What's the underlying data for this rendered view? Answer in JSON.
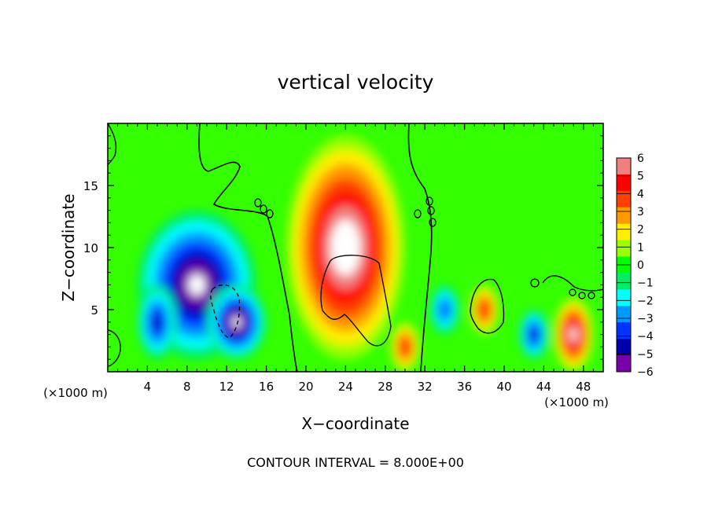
{
  "chart_data": {
    "type": "heatmap",
    "title": "vertical velocity",
    "xlabel": "X−coordinate",
    "ylabel": "Z−coordinate",
    "x_unit_left": "(×1000 m)",
    "x_unit_right": "(×1000 m)",
    "footer": "CONTOUR INTERVAL = 8.000E+00",
    "xlim": [
      0,
      50
    ],
    "ylim": [
      0,
      20
    ],
    "x_ticks": [
      4,
      8,
      12,
      16,
      20,
      24,
      28,
      32,
      36,
      40,
      44,
      48
    ],
    "y_ticks": [
      5,
      10,
      15
    ],
    "colorbar": {
      "labels": [
        "6",
        "5",
        "4",
        "3",
        "2",
        "1",
        "0",
        "−1",
        "−2",
        "−3",
        "−4",
        "−5",
        "−6"
      ],
      "values": [
        6,
        5,
        4,
        3,
        2,
        1,
        0,
        -1,
        -2,
        -3,
        -4,
        -5,
        -6
      ],
      "colors": [
        "#f08080",
        "#ff0000",
        "#ff4000",
        "#ff9900",
        "#ffee00",
        "#99ff00",
        "#00ff00",
        "#00ee66",
        "#00ffff",
        "#0099ff",
        "#0033ff",
        "#0000aa",
        "#7700aa"
      ]
    },
    "features": [
      {
        "kind": "updraft",
        "x": 24,
        "z": 10,
        "x_radius": 6,
        "z_radius": 9,
        "peak": 8,
        "note": "white core exceeds 6"
      },
      {
        "kind": "downdraft",
        "x": 9,
        "z": 7,
        "x_radius": 6,
        "z_radius": 6,
        "peak": -7
      },
      {
        "kind": "downdraft",
        "x": 13,
        "z": 4,
        "x_radius": 3,
        "z_radius": 3,
        "peak": -7
      },
      {
        "kind": "downdraft",
        "x": 5,
        "z": 4,
        "x_radius": 2,
        "z_radius": 3,
        "peak": -5
      },
      {
        "kind": "updraft",
        "x": 38,
        "z": 5,
        "x_radius": 1.5,
        "z_radius": 2,
        "peak": 5
      },
      {
        "kind": "downdraft",
        "x": 34,
        "z": 5,
        "x_radius": 1.5,
        "z_radius": 2,
        "peak": -4
      },
      {
        "kind": "updraft",
        "x": 47,
        "z": 3,
        "x_radius": 2,
        "z_radius": 3,
        "peak": 7
      },
      {
        "kind": "downdraft",
        "x": 43,
        "z": 3,
        "x_radius": 1.5,
        "z_radius": 2,
        "peak": -5
      },
      {
        "kind": "updraft",
        "x": 30,
        "z": 2,
        "x_radius": 1.5,
        "z_radius": 2,
        "peak": 5
      }
    ]
  }
}
